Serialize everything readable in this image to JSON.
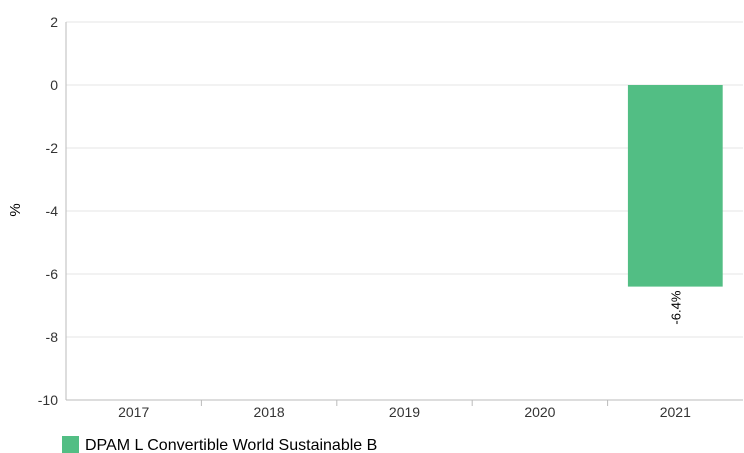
{
  "chart_data": {
    "type": "bar",
    "title": "",
    "xlabel": "",
    "ylabel": "%",
    "categories": [
      "2017",
      "2018",
      "2019",
      "2020",
      "2021"
    ],
    "ylim": [
      -10,
      2
    ],
    "yticks": [
      2,
      0,
      -2,
      -4,
      -6,
      -8,
      -10
    ],
    "grid": true,
    "legend_position": "bottom-left",
    "series": [
      {
        "name": "DPAM L Convertible World Sustainable B",
        "color": "#52be84",
        "values": [
          null,
          null,
          null,
          null,
          -6.4
        ],
        "data_labels": [
          "",
          "",
          "",
          "",
          "-6.4%"
        ]
      }
    ]
  }
}
